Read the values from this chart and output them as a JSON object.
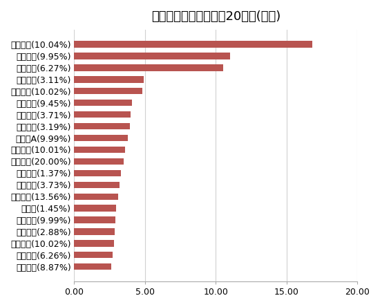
{
  "title": "主力资金净流入金额前20个股(亿元)",
  "categories": [
    "国光电器(8.87%)",
    "紫光股份(6.26%)",
    "汉王科技(10.02%)",
    "三一重工(2.88%)",
    "博彦科技(9.99%)",
    "五粮液(1.45%)",
    "昆仑万维(13.56%)",
    "海康威视(3.73%)",
    "贵州茅台(1.37%)",
    "数码视讯(20.00%)",
    "用友网络(10.01%)",
    "深桑达A(9.99%)",
    "科大讯飞(3.19%)",
    "中国平安(3.71%)",
    "大华股份(9.45%)",
    "电科网安(10.02%)",
    "多利科技(3.11%)",
    "中国电建(6.27%)",
    "浪潮信息(9.95%)",
    "中国联通(10.04%)"
  ],
  "values": [
    2.6,
    2.7,
    2.8,
    2.85,
    2.9,
    2.95,
    3.1,
    3.2,
    3.3,
    3.5,
    3.6,
    3.8,
    3.95,
    4.0,
    4.1,
    4.8,
    4.9,
    10.5,
    11.0,
    16.8
  ],
  "bar_color": "#b85450",
  "background_color": "#ffffff",
  "xlim": [
    0,
    20
  ],
  "xticks": [
    0.0,
    5.0,
    10.0,
    15.0,
    20.0
  ],
  "grid_color": "#d0d0d0",
  "title_fontsize": 13,
  "label_fontsize": 9,
  "tick_fontsize": 9
}
